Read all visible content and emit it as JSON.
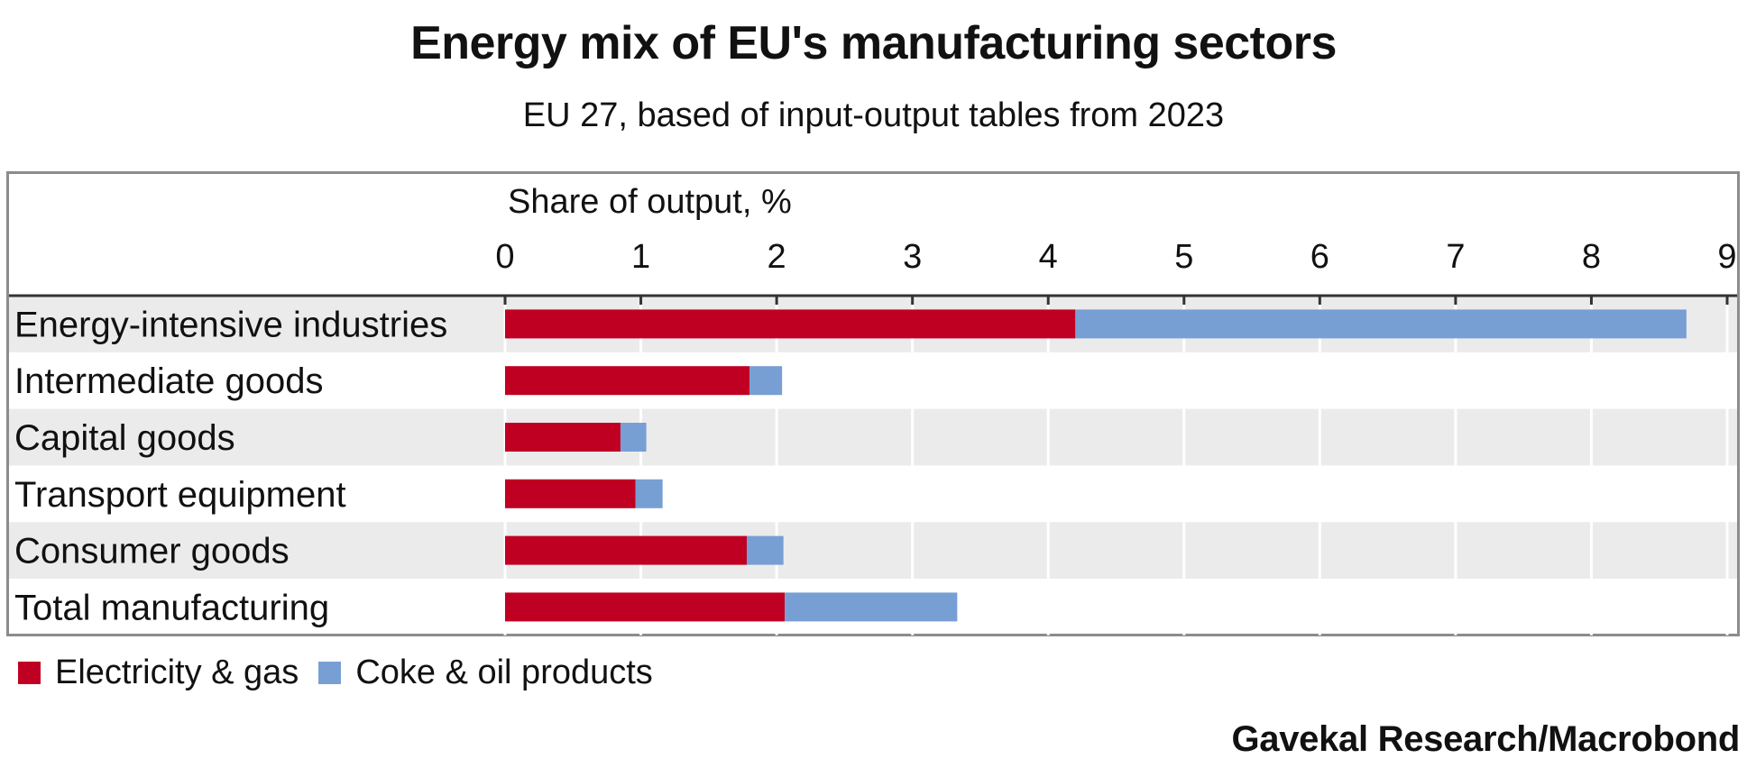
{
  "chart_data": {
    "type": "bar",
    "orientation": "horizontal",
    "stacked": true,
    "title": "Energy mix of EU's manufacturing sectors",
    "subtitle": "EU 27, based of input-output tables from 2023",
    "xlabel": "Share of output, %",
    "ylabel": "",
    "xlim": [
      0,
      9
    ],
    "ticks": [
      "0",
      "1",
      "2",
      "3",
      "4",
      "5",
      "6",
      "7",
      "8",
      "9"
    ],
    "categories": [
      "Energy-intensive industries",
      "Intermediate goods",
      "Capital goods",
      "Transport equipment",
      "Consumer goods",
      "Total manufacturing"
    ],
    "series": [
      {
        "name": "Electricity & gas",
        "color": "#c00022",
        "values": [
          4.2,
          1.8,
          0.85,
          0.96,
          1.78,
          2.06
        ]
      },
      {
        "name": "Coke & oil products",
        "color": "#779fd4",
        "values": [
          4.5,
          0.24,
          0.19,
          0.2,
          0.27,
          1.27
        ]
      }
    ],
    "grid": true,
    "legend_position": "bottom-left"
  },
  "source": "Gavekal Research/Macrobond",
  "colors": {
    "band": "#ebebeb",
    "grid": "#ffffff",
    "axis": "#333333",
    "frame": "#8c8c8c"
  }
}
